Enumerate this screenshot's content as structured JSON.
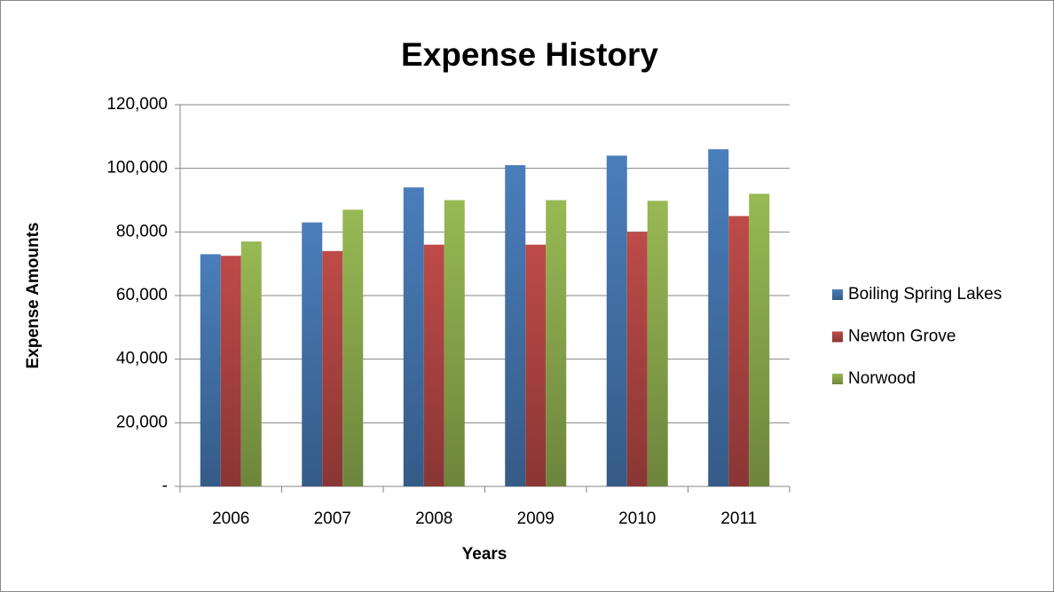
{
  "chart_data": {
    "type": "bar",
    "title": "Expense History",
    "x_label": "Years",
    "y_label": "Expense Amounts",
    "categories": [
      "2006",
      "2007",
      "2008",
      "2009",
      "2010",
      "2011"
    ],
    "series": [
      {
        "name": "Boiling Spring Lakes",
        "color": "#4a7ebb",
        "values": [
          73000,
          83000,
          94000,
          101000,
          104000,
          106000
        ]
      },
      {
        "name": "Newton Grove",
        "color": "#be4b48",
        "values": [
          72500,
          74000,
          76000,
          76000,
          80000,
          85000
        ]
      },
      {
        "name": "Norwood",
        "color": "#98b954",
        "values": [
          77000,
          87000,
          90000,
          90000,
          89800,
          92000
        ]
      }
    ],
    "ylim": [
      0,
      120000
    ],
    "yticks": [
      {
        "value": 0,
        "label": "-"
      },
      {
        "value": 20000,
        "label": "20,000"
      },
      {
        "value": 40000,
        "label": "40,000"
      },
      {
        "value": 60000,
        "label": "60,000"
      },
      {
        "value": 80000,
        "label": "80,000"
      },
      {
        "value": 100000,
        "label": "100,000"
      },
      {
        "value": 120000,
        "label": "120,000"
      }
    ],
    "grid": true,
    "legend": "right"
  }
}
